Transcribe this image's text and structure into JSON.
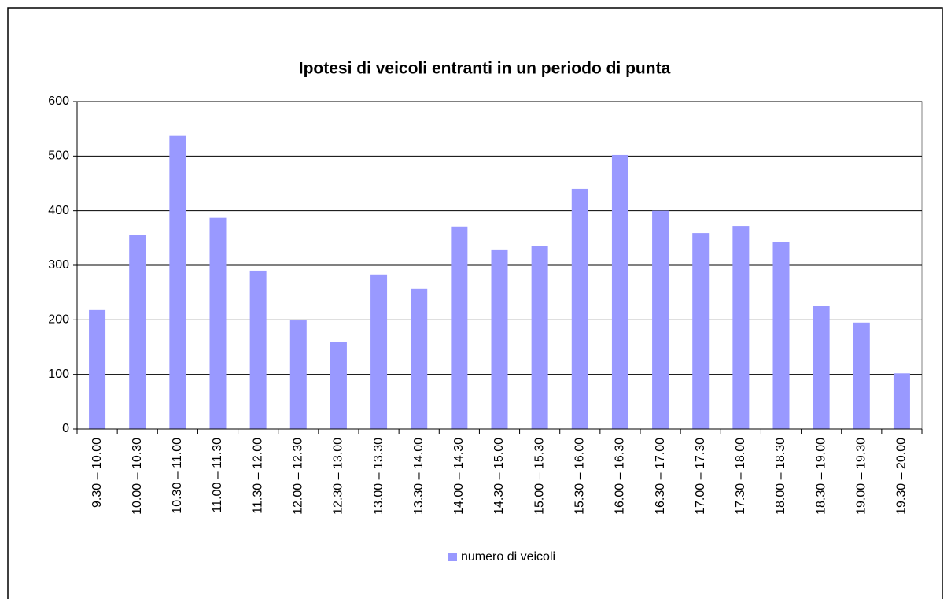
{
  "chart_data": {
    "type": "bar",
    "title": "Ipotesi di veicoli entranti in un periodo di punta",
    "categories": [
      "9.30 – 10.00",
      "10.00 – 10.30",
      "10.30 – 11.00",
      "11.00 – 11.30",
      "11.30 – 12.00",
      "12.00 – 12.30",
      "12.30 – 13.00",
      "13.00 – 13.30",
      "13.30 – 14.00",
      "14.00 – 14.30",
      "14.30 – 15.00",
      "15.00 – 15.30",
      "15.30 – 16.00",
      "16.00 – 16.30",
      "16.30 – 17.00",
      "17.00 – 17.30",
      "17.30 – 18.00",
      "18.00 – 18.30",
      "18.30 – 19.00",
      "19.00 – 19.30",
      "19.30 – 20.00"
    ],
    "series": [
      {
        "name": "numero di veicoli",
        "color": "#9999ff",
        "values": [
          218,
          355,
          537,
          387,
          290,
          199,
          160,
          283,
          257,
          371,
          329,
          336,
          440,
          502,
          400,
          359,
          372,
          343,
          225,
          195,
          102
        ]
      }
    ],
    "ylim": [
      0,
      600
    ],
    "yticks": [
      0,
      100,
      200,
      300,
      400,
      500,
      600
    ],
    "grid": true,
    "legend": "bottom"
  }
}
